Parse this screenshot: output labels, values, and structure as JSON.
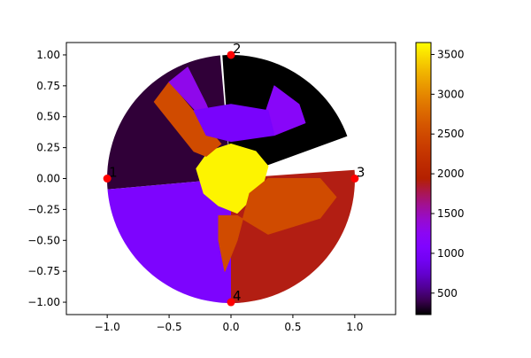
{
  "chart_data": {
    "type": "heatmap",
    "title": "",
    "xlabel": "",
    "ylabel": "",
    "xlim": [
      -1.33,
      1.33
    ],
    "ylim": [
      -1.1,
      1.1
    ],
    "xticks": [
      -1.0,
      -0.5,
      0.0,
      0.5,
      1.0
    ],
    "xtick_labels": [
      "−1.0",
      "−0.5",
      "0.0",
      "0.5",
      "1.0"
    ],
    "yticks": [
      1.0,
      0.75,
      0.5,
      0.25,
      0.0,
      -0.25,
      -0.5,
      -0.75,
      -1.0
    ],
    "ytick_labels": [
      "1.00",
      "0.75",
      "0.50",
      "0.25",
      "0.00",
      "−0.25",
      "−0.50",
      "−0.75",
      "−1.00"
    ],
    "domain": "unit disk",
    "colormap": "gnuplot",
    "color_range": [
      230,
      3650
    ],
    "colorbar_ticks": [
      500,
      1000,
      1500,
      2000,
      2500,
      3000,
      3500
    ],
    "colorbar_tick_labels": [
      "500",
      "1000",
      "1500",
      "2000",
      "2500",
      "3000",
      "3500"
    ],
    "electrodes": [
      {
        "label": "1",
        "x": -1.0,
        "y": 0.0
      },
      {
        "label": "2",
        "x": 0.0,
        "y": 1.0
      },
      {
        "label": "3",
        "x": 1.0,
        "y": 0.0
      },
      {
        "label": "4",
        "x": 0.0,
        "y": -1.0
      }
    ],
    "marker_color": "#ff0000",
    "regions": [
      {
        "value": 3600,
        "points": [
          [
            -0.28,
            0.08
          ],
          [
            -0.18,
            0.22
          ],
          [
            0.0,
            0.28
          ],
          [
            0.2,
            0.22
          ],
          [
            0.3,
            0.1
          ],
          [
            0.25,
            -0.08
          ],
          [
            0.15,
            -0.18
          ],
          [
            0.05,
            -0.28
          ],
          [
            -0.1,
            -0.22
          ],
          [
            -0.22,
            -0.12
          ]
        ]
      },
      {
        "value": 2500,
        "points": [
          [
            -0.62,
            0.62
          ],
          [
            -0.5,
            0.78
          ],
          [
            -0.18,
            0.4
          ],
          [
            -0.08,
            0.28
          ],
          [
            -0.2,
            0.18
          ],
          [
            -0.3,
            0.22
          ]
        ]
      },
      {
        "value": 2500,
        "points": [
          [
            -0.1,
            -0.3
          ],
          [
            0.05,
            -0.3
          ],
          [
            0.3,
            -0.45
          ],
          [
            0.72,
            -0.32
          ],
          [
            0.85,
            -0.15
          ],
          [
            0.72,
            0.0
          ],
          [
            0.3,
            0.0
          ],
          [
            0.15,
            -0.12
          ],
          [
            0.05,
            -0.5
          ],
          [
            -0.05,
            -0.75
          ],
          [
            -0.1,
            -0.5
          ]
        ]
      },
      {
        "value": 1300,
        "points": [
          [
            -0.5,
            0.78
          ],
          [
            -0.35,
            0.9
          ],
          [
            -0.2,
            0.6
          ],
          [
            -0.1,
            0.35
          ]
        ]
      },
      {
        "value": 1200,
        "points": [
          [
            0.35,
            0.75
          ],
          [
            0.55,
            0.6
          ],
          [
            0.6,
            0.45
          ],
          [
            0.35,
            0.35
          ],
          [
            0.25,
            0.45
          ]
        ]
      },
      {
        "value": 1000,
        "points": [
          [
            -0.3,
            0.55
          ],
          [
            0.0,
            0.6
          ],
          [
            0.3,
            0.55
          ],
          [
            0.35,
            0.35
          ],
          [
            0.0,
            0.3
          ],
          [
            -0.2,
            0.35
          ]
        ]
      }
    ],
    "base_values": {
      "upper_left_sector": 350,
      "top_right_sector": 230,
      "left_lower_sector": 1050,
      "right_lower_sector": 1900,
      "upper_right_band": 1100
    }
  }
}
